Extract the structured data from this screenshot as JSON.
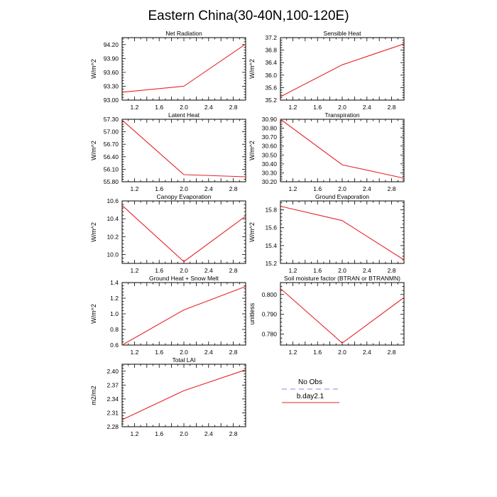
{
  "title": "Eastern China(30-40N,100-120E)",
  "colors": {
    "model": "#e8242a",
    "obs": "#9aa0e6",
    "axis": "#000000"
  },
  "legend": {
    "obs_label": "No Obs",
    "model_label": "b.day2.1"
  },
  "chart_data": [
    {
      "type": "line",
      "title": "Net Radiation",
      "ylabel": "W/m^2",
      "x": [
        1,
        2,
        3
      ],
      "xlim": [
        1,
        3
      ],
      "xticks": [
        "1.2",
        "1.6",
        "2.0",
        "2.4",
        "2.8"
      ],
      "ylim": [
        93.0,
        94.35
      ],
      "yticks": [
        "93.00",
        "93.30",
        "93.60",
        "93.90",
        "94.20"
      ],
      "series": [
        {
          "values": [
            93.17,
            93.3,
            94.21
          ]
        }
      ]
    },
    {
      "type": "line",
      "title": "Sensible Heat",
      "ylabel": "W/m^2",
      "x": [
        1,
        2,
        3
      ],
      "xlim": [
        1,
        3
      ],
      "xticks": [
        "1.2",
        "1.6",
        "2.0",
        "2.4",
        "2.8"
      ],
      "ylim": [
        35.2,
        37.2
      ],
      "yticks": [
        "35.2",
        "35.6",
        "36.0",
        "36.4",
        "36.8",
        "37.2"
      ],
      "series": [
        {
          "values": [
            35.31,
            36.33,
            37.0
          ]
        }
      ]
    },
    {
      "type": "line",
      "title": "Latent Heat",
      "ylabel": "W/m^2",
      "x": [
        1,
        2,
        3
      ],
      "xlim": [
        1,
        3
      ],
      "xticks": [
        "1.2",
        "1.6",
        "2.0",
        "2.4",
        "2.8"
      ],
      "ylim": [
        55.8,
        57.3
      ],
      "yticks": [
        "55.80",
        "56.10",
        "56.40",
        "56.70",
        "57.00",
        "57.30"
      ],
      "series": [
        {
          "values": [
            57.28,
            55.97,
            55.92
          ]
        }
      ]
    },
    {
      "type": "line",
      "title": "Transpiration",
      "ylabel": "W/m^2",
      "x": [
        1,
        2,
        3
      ],
      "xlim": [
        1,
        3
      ],
      "xticks": [
        "1.2",
        "1.6",
        "2.0",
        "2.4",
        "2.8"
      ],
      "ylim": [
        30.2,
        30.9
      ],
      "yticks": [
        "30.20",
        "30.30",
        "30.40",
        "30.50",
        "30.60",
        "30.70",
        "30.80",
        "30.90"
      ],
      "series": [
        {
          "values": [
            30.9,
            30.39,
            30.24
          ]
        }
      ]
    },
    {
      "type": "line",
      "title": "Canopy Evaporation",
      "ylabel": "W/m^2",
      "x": [
        1,
        2,
        3
      ],
      "xlim": [
        1,
        3
      ],
      "xticks": [
        "1.2",
        "1.6",
        "2.0",
        "2.4",
        "2.8"
      ],
      "ylim": [
        9.9,
        10.6
      ],
      "yticks": [
        "10.0",
        "10.2",
        "10.4",
        "10.6"
      ],
      "series": [
        {
          "values": [
            10.55,
            9.92,
            10.43
          ]
        }
      ]
    },
    {
      "type": "line",
      "title": "Ground Evaporation",
      "ylabel": "W/m^2",
      "x": [
        1,
        2,
        3
      ],
      "xlim": [
        1,
        3
      ],
      "xticks": [
        "1.2",
        "1.6",
        "2.0",
        "2.4",
        "2.8"
      ],
      "ylim": [
        15.2,
        15.9
      ],
      "yticks": [
        "15.2",
        "15.4",
        "15.6",
        "15.8"
      ],
      "series": [
        {
          "values": [
            15.84,
            15.68,
            15.24
          ]
        }
      ]
    },
    {
      "type": "line",
      "title": "Ground Heat + Snow Melt",
      "ylabel": "W/m^2",
      "x": [
        1,
        2,
        3
      ],
      "xlim": [
        1,
        3
      ],
      "xticks": [
        "1.2",
        "1.6",
        "2.0",
        "2.4",
        "2.8"
      ],
      "ylim": [
        0.6,
        1.4
      ],
      "yticks": [
        "0.6",
        "0.8",
        "1.0",
        "1.2",
        "1.4"
      ],
      "series": [
        {
          "values": [
            0.6,
            1.05,
            1.35
          ]
        }
      ]
    },
    {
      "type": "line",
      "title": "Soil moisture factor (BTRAN or BTRANMN)",
      "ylabel": "unitless",
      "x": [
        1,
        2,
        3
      ],
      "xlim": [
        1,
        3
      ],
      "xticks": [
        "1.2",
        "1.6",
        "2.0",
        "2.4",
        "2.8"
      ],
      "ylim": [
        0.7745,
        0.806
      ],
      "yticks": [
        "0.780",
        "0.790",
        "0.800"
      ],
      "series": [
        {
          "values": [
            0.803,
            0.7755,
            0.7985
          ]
        }
      ]
    },
    {
      "type": "line",
      "title": "Total LAI",
      "ylabel": "m2/m2",
      "x": [
        1,
        2,
        3
      ],
      "xlim": [
        1,
        3
      ],
      "xticks": [
        "1.2",
        "1.6",
        "2.0",
        "2.4",
        "2.8"
      ],
      "ylim": [
        2.28,
        2.415
      ],
      "yticks": [
        "2.28",
        "2.31",
        "2.34",
        "2.37",
        "2.40"
      ],
      "series": [
        {
          "values": [
            2.295,
            2.358,
            2.403
          ]
        }
      ]
    }
  ]
}
